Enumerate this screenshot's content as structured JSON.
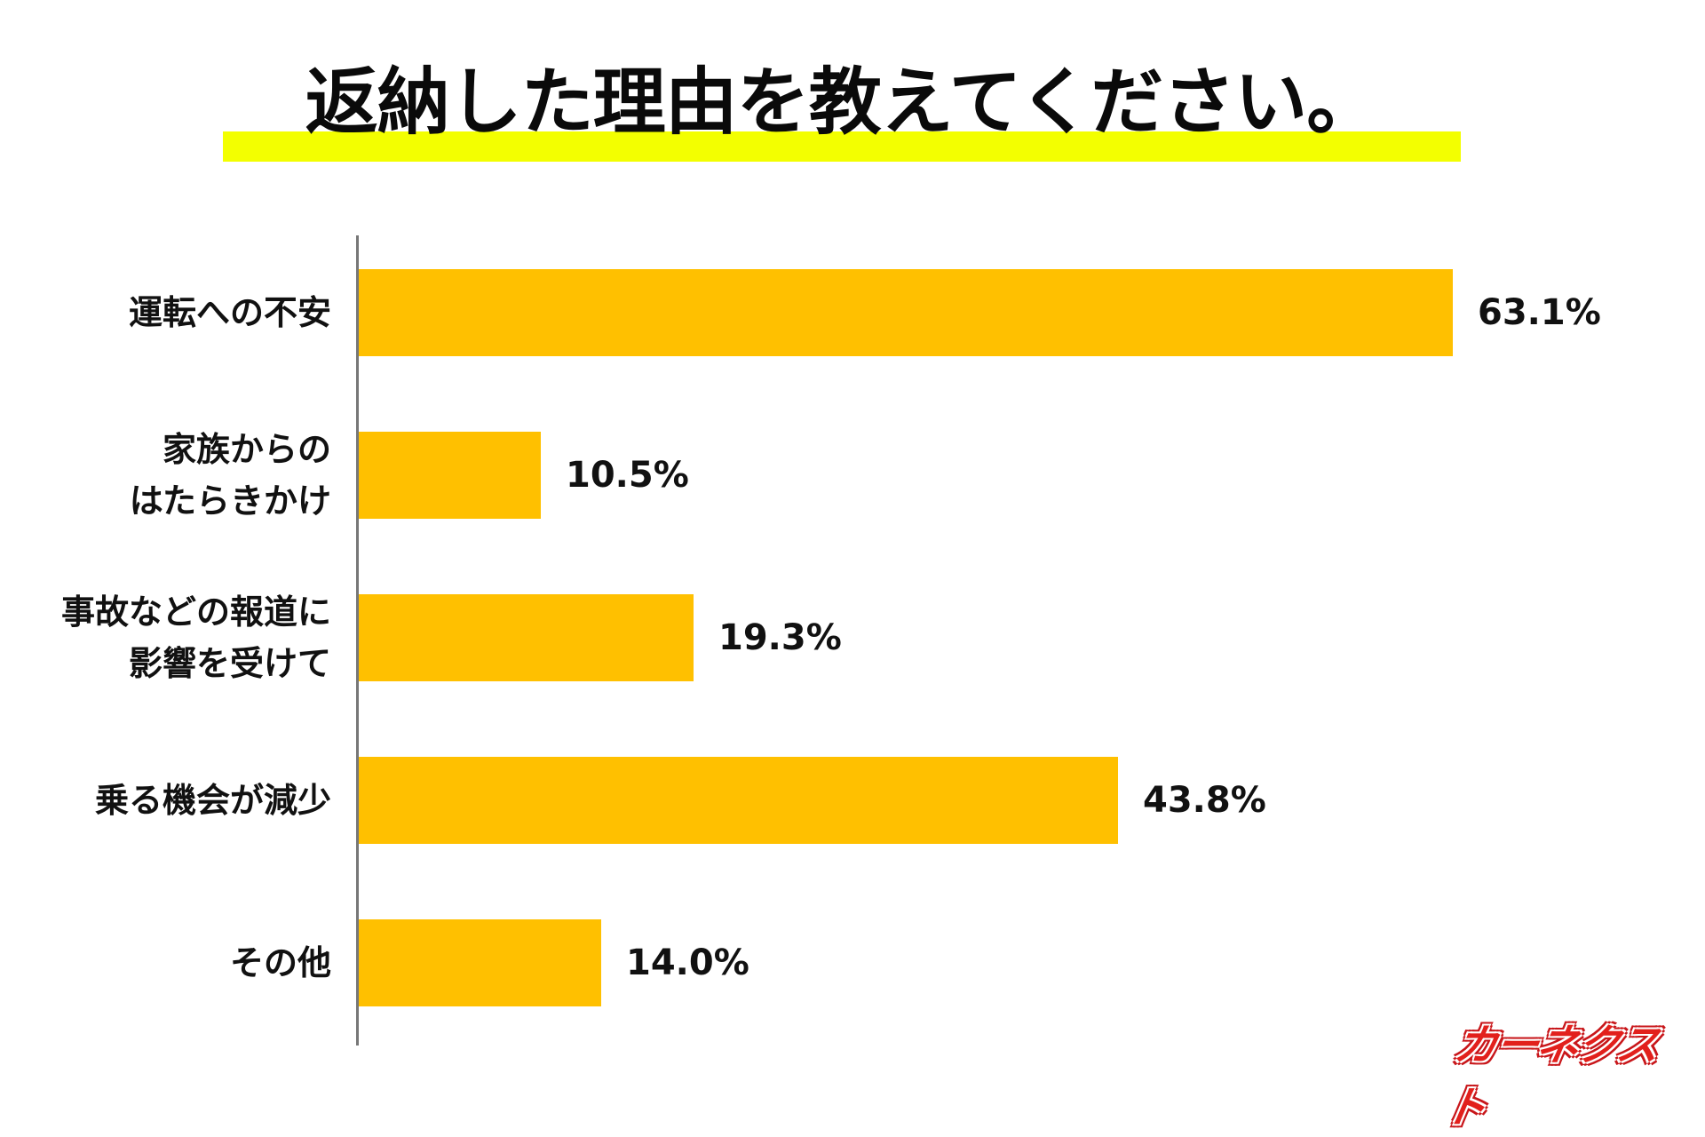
{
  "title": "返納した理由を教えてください。",
  "colors": {
    "title_highlight": "#F3FF00",
    "bar": "#FFC000",
    "axis": "#777777",
    "logo": "#E2201C"
  },
  "logo": {
    "text": "カーネクスト"
  },
  "rows": [
    {
      "lines": [
        "運転への不安"
      ],
      "value": 63.1,
      "value_label": "63.1%"
    },
    {
      "lines": [
        "家族からの",
        "はたらきかけ"
      ],
      "value": 10.5,
      "value_label": "10.5%"
    },
    {
      "lines": [
        "事故などの報道に",
        "影響を受けて"
      ],
      "value": 19.3,
      "value_label": "19.3%"
    },
    {
      "lines": [
        "乗る機会が減少"
      ],
      "value": 43.8,
      "value_label": "43.8%"
    },
    {
      "lines": [
        "その他"
      ],
      "value": 14.0,
      "value_label": "14.0%"
    }
  ],
  "chart_data": {
    "type": "bar",
    "orientation": "horizontal",
    "title": "返納した理由を教えてください。",
    "categories": [
      "運転への不安",
      "家族からのはたらきかけ",
      "事故などの報道に影響を受けて",
      "乗る機会が減少",
      "その他"
    ],
    "values": [
      63.1,
      10.5,
      19.3,
      43.8,
      14.0
    ],
    "value_labels": [
      "63.1%",
      "10.5%",
      "19.3%",
      "43.8%",
      "14.0%"
    ],
    "unit": "%",
    "xlabel": "",
    "ylabel": "",
    "grid": false,
    "legend": null,
    "source_logo": "カーネクスト"
  }
}
